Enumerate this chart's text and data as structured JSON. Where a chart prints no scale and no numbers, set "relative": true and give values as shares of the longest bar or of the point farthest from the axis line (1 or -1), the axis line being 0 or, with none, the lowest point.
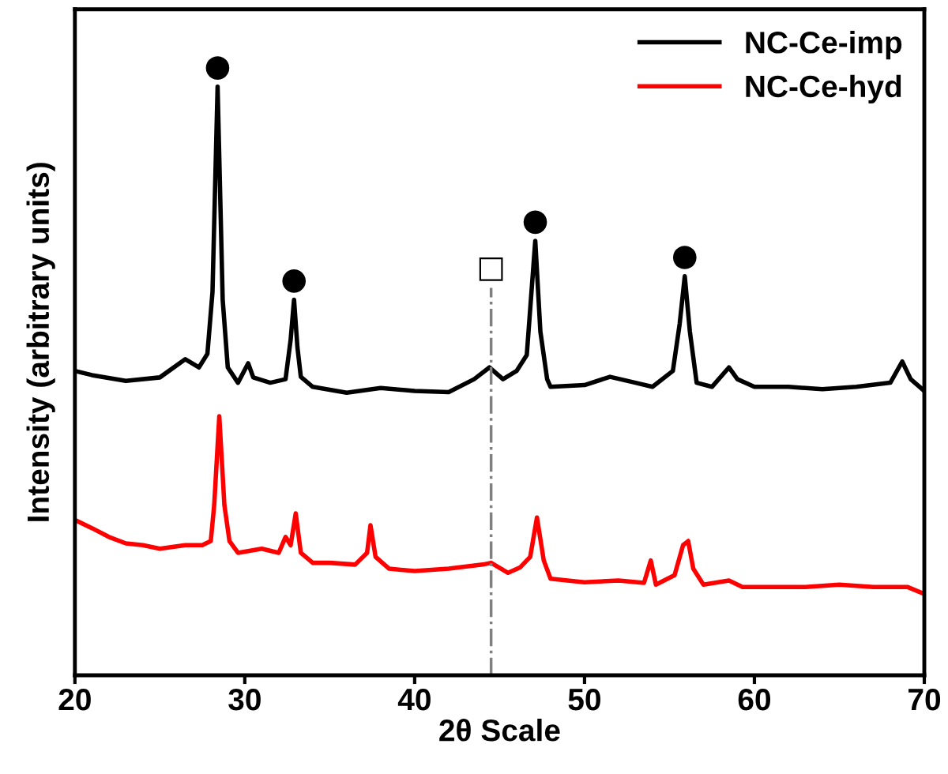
{
  "chart_data": {
    "type": "line",
    "relative": true,
    "xlabel": "2θ Scale",
    "ylabel": "Intensity (arbitrary units)",
    "xlim": [
      20,
      70
    ],
    "xticks": [
      20,
      30,
      40,
      50,
      60,
      70
    ],
    "grid": false,
    "legend": "top right",
    "line_style": "solid",
    "marker": "none",
    "series": [
      {
        "name": "NC-Ce-imp",
        "color": "#000000",
        "x": [
          20,
          21,
          23,
          25,
          26.5,
          27.3,
          27.8,
          28.1,
          28.4,
          28.7,
          29,
          29.6,
          30.2,
          30.5,
          31.5,
          32.4,
          32.7,
          32.9,
          33.1,
          33.3,
          34,
          36,
          38,
          40,
          42,
          43.5,
          44.4,
          45.2,
          46,
          46.6,
          47.1,
          47.4,
          47.8,
          48,
          50,
          51.5,
          53,
          54,
          55.2,
          55.6,
          55.9,
          56.2,
          56.6,
          57.5,
          58.5,
          59,
          60,
          62,
          64,
          66,
          68,
          68.7,
          69.2,
          70
        ],
        "values": [
          0.517,
          0.51,
          0.5,
          0.506,
          0.537,
          0.523,
          0.546,
          0.651,
          1.0,
          0.638,
          0.523,
          0.497,
          0.53,
          0.506,
          0.497,
          0.503,
          0.57,
          0.638,
          0.557,
          0.507,
          0.49,
          0.48,
          0.488,
          0.483,
          0.481,
          0.503,
          0.523,
          0.503,
          0.517,
          0.544,
          0.738,
          0.584,
          0.503,
          0.49,
          0.493,
          0.507,
          0.497,
          0.49,
          0.517,
          0.597,
          0.678,
          0.584,
          0.497,
          0.49,
          0.523,
          0.503,
          0.49,
          0.49,
          0.486,
          0.49,
          0.497,
          0.533,
          0.503,
          0.483
        ]
      },
      {
        "name": "NC-Ce-hyd",
        "color": "#ff0000",
        "x": [
          20,
          21,
          22,
          23,
          24,
          25,
          26.5,
          27.5,
          28,
          28.2,
          28.5,
          28.8,
          29.1,
          29.6,
          31,
          32,
          32.4,
          32.7,
          33,
          33.3,
          34,
          35,
          36.5,
          37.2,
          37.4,
          37.7,
          38.5,
          40,
          42,
          44,
          44.5,
          45.5,
          46.2,
          46.8,
          47.2,
          47.6,
          48,
          50,
          52,
          53.5,
          53.9,
          54.2,
          55.3,
          55.8,
          56.1,
          56.4,
          57,
          58.5,
          59.3,
          61,
          63,
          65,
          67,
          69,
          70
        ],
        "values": [
          0.264,
          0.25,
          0.235,
          0.224,
          0.221,
          0.215,
          0.221,
          0.221,
          0.228,
          0.289,
          0.44,
          0.289,
          0.228,
          0.208,
          0.215,
          0.208,
          0.235,
          0.221,
          0.275,
          0.208,
          0.191,
          0.191,
          0.188,
          0.208,
          0.255,
          0.201,
          0.181,
          0.177,
          0.181,
          0.188,
          0.191,
          0.174,
          0.183,
          0.201,
          0.268,
          0.195,
          0.164,
          0.158,
          0.161,
          0.157,
          0.195,
          0.154,
          0.17,
          0.221,
          0.228,
          0.181,
          0.154,
          0.161,
          0.15,
          0.15,
          0.15,
          0.154,
          0.15,
          0.15,
          0.138
        ]
      },
      {
        "color": "#808080",
        "line_style": "dashdot",
        "x": [
          44.5,
          44.5
        ],
        "values": [
          0,
          0.658
        ]
      }
    ],
    "annotations": [
      {
        "text": "●",
        "x": 28.4,
        "y": 1.0
      },
      {
        "text": "●",
        "x": 32.9,
        "y": 0.638
      },
      {
        "text": "●",
        "x": 47.1,
        "y": 0.738
      },
      {
        "text": "●",
        "x": 55.9,
        "y": 0.678
      },
      {
        "text": "□",
        "x": 44.5,
        "y": 0.658
      }
    ]
  }
}
